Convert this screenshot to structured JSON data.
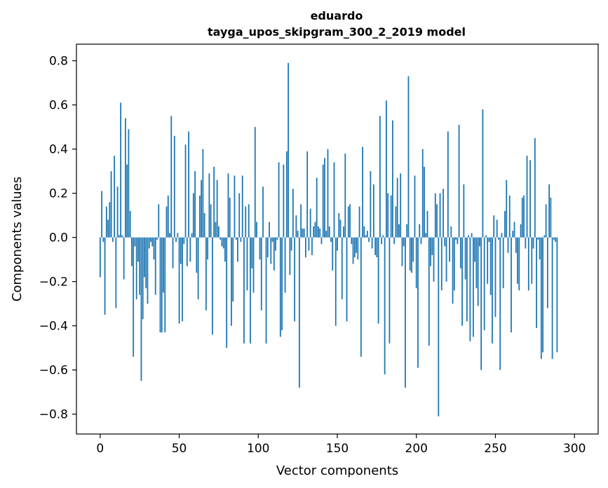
{
  "chart_data": {
    "type": "bar",
    "title": "eduardo",
    "subtitle": "tayga_upos_skipgram_300_2_2019 model",
    "xlabel": "Vector components",
    "ylabel": "Components values",
    "xlim": [
      -15,
      315
    ],
    "ylim": [
      -0.89,
      0.875
    ],
    "xticks": [
      0,
      50,
      100,
      150,
      200,
      250,
      300
    ],
    "xtick_labels": [
      "0",
      "50",
      "100",
      "150",
      "200",
      "250",
      "300"
    ],
    "yticks": [
      -0.8,
      -0.6,
      -0.4,
      -0.2,
      0.0,
      0.2,
      0.4,
      0.6,
      0.8
    ],
    "ytick_labels": [
      "−0.8",
      "−0.6",
      "−0.4",
      "−0.2",
      "0.0",
      "0.2",
      "0.4",
      "0.6",
      "0.8"
    ],
    "grid": false,
    "bar_color": "#1f77b4",
    "bar_width": 0.8,
    "values": [
      -0.18,
      0.21,
      -0.02,
      -0.35,
      0.14,
      0.08,
      0.16,
      0.3,
      -0.02,
      0.37,
      -0.32,
      0.23,
      0.01,
      0.61,
      0.01,
      -0.19,
      0.54,
      0.33,
      0.49,
      0.12,
      -0.13,
      -0.54,
      -0.04,
      -0.28,
      -0.11,
      -0.26,
      -0.65,
      -0.37,
      -0.18,
      -0.23,
      -0.3,
      -0.05,
      -0.02,
      -0.04,
      -0.1,
      -0.26,
      -0.01,
      0.15,
      -0.43,
      -0.43,
      -0.25,
      -0.43,
      0.14,
      0.19,
      0.02,
      0.55,
      -0.14,
      0.46,
      -0.02,
      0.02,
      -0.39,
      -0.12,
      -0.38,
      -0.03,
      0.42,
      -0.13,
      0.48,
      -0.11,
      0.02,
      0.2,
      0.3,
      -0.16,
      -0.28,
      0.19,
      0.26,
      0.4,
      0.11,
      -0.33,
      -0.1,
      0.29,
      0.15,
      -0.44,
      0.32,
      0.07,
      0.26,
      0.05,
      -0.01,
      -0.04,
      -0.05,
      -0.11,
      -0.5,
      0.29,
      0.18,
      -0.4,
      -0.29,
      0.28,
      -0.01,
      -0.11,
      0.2,
      -0.02,
      0.28,
      -0.48,
      0.14,
      -0.24,
      0.15,
      -0.48,
      -0.14,
      -0.25,
      0.5,
      0.07,
      0.0,
      -0.1,
      -0.33,
      0.23,
      0.0,
      -0.48,
      -0.09,
      0.07,
      -0.12,
      -0.02,
      -0.15,
      -0.06,
      -0.01,
      0.34,
      -0.45,
      -0.42,
      0.33,
      -0.25,
      0.39,
      0.79,
      -0.17,
      -0.06,
      0.22,
      -0.38,
      0.1,
      0.03,
      -0.68,
      0.15,
      0.04,
      0.04,
      -0.09,
      0.39,
      -0.06,
      0.13,
      -0.08,
      0.05,
      0.07,
      0.27,
      0.05,
      0.04,
      -0.03,
      0.33,
      0.36,
      0.03,
      0.4,
      0.05,
      -0.02,
      -0.15,
      0.34,
      -0.4,
      -0.06,
      0.11,
      0.08,
      -0.28,
      0.05,
      0.38,
      -0.38,
      0.14,
      0.15,
      -0.03,
      -0.12,
      -0.09,
      -0.07,
      -0.1,
      0.14,
      -0.54,
      0.41,
      0.05,
      0.01,
      0.03,
      -0.02,
      0.3,
      -0.05,
      0.24,
      -0.08,
      -0.09,
      -0.39,
      0.55,
      -0.03,
      0.01,
      -0.62,
      0.62,
      0.2,
      -0.48,
      0.19,
      0.53,
      -0.03,
      0.14,
      0.27,
      0.06,
      0.29,
      -0.13,
      -0.04,
      -0.68,
      0.06,
      0.73,
      -0.15,
      -0.16,
      -0.11,
      0.28,
      -0.23,
      -0.59,
      0.06,
      -0.03,
      0.4,
      0.32,
      0.02,
      0.12,
      -0.49,
      -0.13,
      -0.08,
      -0.2,
      0.2,
      0.15,
      -0.81,
      0.2,
      -0.24,
      0.22,
      -0.04,
      -0.2,
      0.48,
      -0.11,
      0.05,
      -0.3,
      -0.24,
      -0.01,
      -0.03,
      0.51,
      -0.14,
      -0.4,
      0.24,
      -0.19,
      -0.38,
      0.01,
      -0.47,
      0.02,
      -0.45,
      -0.11,
      -0.23,
      -0.31,
      -0.04,
      -0.6,
      0.58,
      -0.42,
      0.01,
      -0.21,
      -0.02,
      -0.26,
      -0.48,
      0.1,
      -0.36,
      0.08,
      -0.01,
      -0.6,
      0.02,
      -0.23,
      0.12,
      0.26,
      -0.07,
      0.19,
      -0.43,
      0.03,
      0.07,
      -0.07,
      -0.21,
      -0.24,
      0.06,
      0.18,
      0.19,
      -0.05,
      0.37,
      -0.24,
      0.35,
      -0.21,
      -0.05,
      0.45,
      -0.41,
      -0.01,
      -0.1,
      -0.55,
      -0.52,
      0.01,
      0.15,
      -0.32,
      0.24,
      0.18,
      -0.55,
      -0.01,
      -0.02,
      -0.52
    ]
  }
}
